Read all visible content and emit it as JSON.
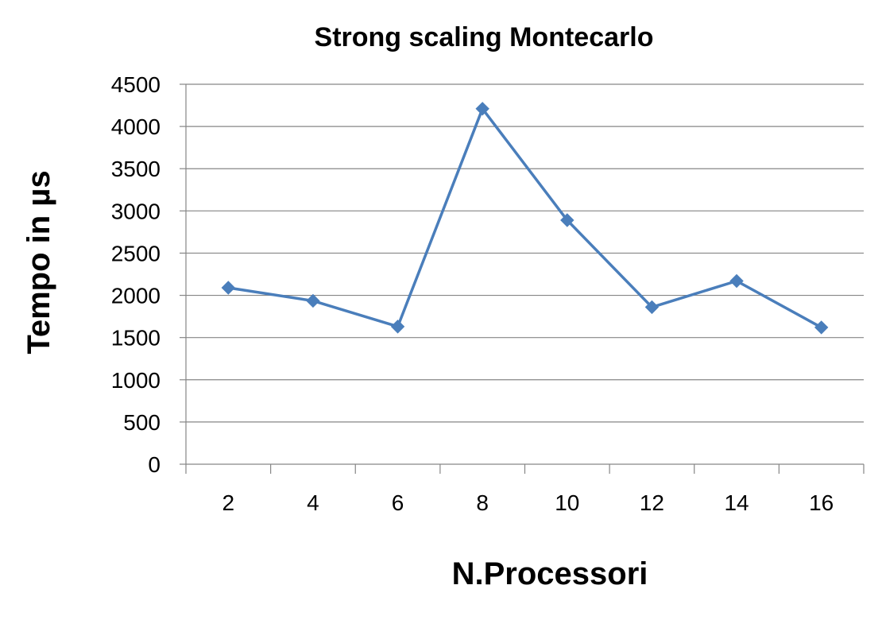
{
  "chart_data": {
    "type": "line",
    "title": "Strong scaling Montecarlo",
    "xlabel": "N.Processori",
    "ylabel": "Tempo in µs",
    "categories": [
      "2",
      "4",
      "6",
      "8",
      "10",
      "12",
      "14",
      "16"
    ],
    "series": [
      {
        "values": [
          2090,
          1935,
          1630,
          4210,
          2890,
          1860,
          2170,
          1620
        ]
      }
    ],
    "ylim": [
      0,
      4500
    ],
    "yticks": [
      0,
      500,
      1000,
      1500,
      2000,
      2500,
      3000,
      3500,
      4000,
      4500
    ],
    "grid": true,
    "legend": "none",
    "colors": {
      "series": "#4a7ebb",
      "grid": "#868686",
      "axis": "#868686",
      "text": "#000000"
    }
  }
}
